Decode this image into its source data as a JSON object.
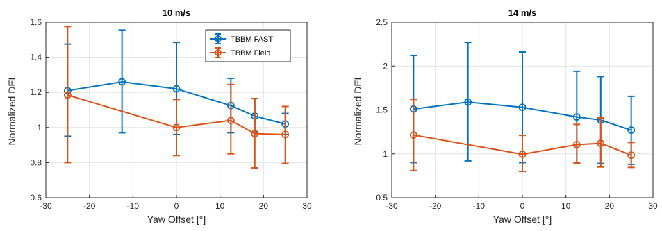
{
  "chart_data": [
    {
      "type": "line",
      "title": "10 m/s",
      "xlabel": "Yaw Offset [°]",
      "ylabel": "Normalized DEL",
      "xlim": [
        -30,
        30
      ],
      "ylim": [
        0.6,
        1.6
      ],
      "xticks": [
        -30,
        -20,
        -10,
        0,
        10,
        20,
        30
      ],
      "yticks": [
        0.6,
        0.8,
        1,
        1.2,
        1.4,
        1.6
      ],
      "ytick_labels": [
        "0.6",
        "0.8",
        "1",
        "1.2",
        "1.4",
        "1.6"
      ],
      "grid": true,
      "legend_position": "top-right",
      "series": [
        {
          "name": "TBBM FAST",
          "color": "#0072BD",
          "x": [
            -25,
            -12.5,
            0,
            12.5,
            18,
            25
          ],
          "y": [
            1.21,
            1.26,
            1.22,
            1.125,
            1.065,
            1.02
          ],
          "err_low": [
            0.95,
            0.97,
            0.96,
            0.97,
            0.97,
            0.96
          ],
          "err_high": [
            1.475,
            1.555,
            1.485,
            1.28,
            1.165,
            1.08
          ]
        },
        {
          "name": "TBBM Field",
          "color": "#D95319",
          "x": [
            -25,
            0,
            12.5,
            18,
            25
          ],
          "y": [
            1.185,
            1.0,
            1.04,
            0.965,
            0.96
          ],
          "err_low": [
            0.8,
            0.84,
            0.85,
            0.77,
            0.795
          ],
          "err_high": [
            1.575,
            1.16,
            1.245,
            1.165,
            1.12
          ]
        }
      ]
    },
    {
      "type": "line",
      "title": "14 m/s",
      "xlabel": "Yaw Offset [°]",
      "ylabel": "Normalized DEL",
      "xlim": [
        -30,
        30
      ],
      "ylim": [
        0.5,
        2.5
      ],
      "xticks": [
        -30,
        -20,
        -10,
        0,
        10,
        20,
        30
      ],
      "yticks": [
        0.5,
        1,
        1.5,
        2,
        2.5
      ],
      "ytick_labels": [
        "0.5",
        "1",
        "1.5",
        "2",
        "2.5"
      ],
      "grid": true,
      "series": [
        {
          "name": "TBBM FAST",
          "color": "#0072BD",
          "x": [
            -25,
            -12.5,
            0,
            12.5,
            18,
            25
          ],
          "y": [
            1.51,
            1.59,
            1.53,
            1.42,
            1.385,
            1.27
          ],
          "err_low": [
            0.9,
            0.92,
            0.9,
            0.89,
            0.89,
            0.88
          ],
          "err_high": [
            2.12,
            2.27,
            2.16,
            1.94,
            1.88,
            1.655
          ]
        },
        {
          "name": "TBBM Field",
          "color": "#D95319",
          "x": [
            -25,
            0,
            12.5,
            18,
            25
          ],
          "y": [
            1.215,
            0.995,
            1.105,
            1.12,
            0.985
          ],
          "err_low": [
            0.81,
            0.8,
            0.895,
            0.85,
            0.845
          ],
          "err_high": [
            1.62,
            1.21,
            1.335,
            1.41,
            1.13
          ]
        }
      ]
    }
  ]
}
